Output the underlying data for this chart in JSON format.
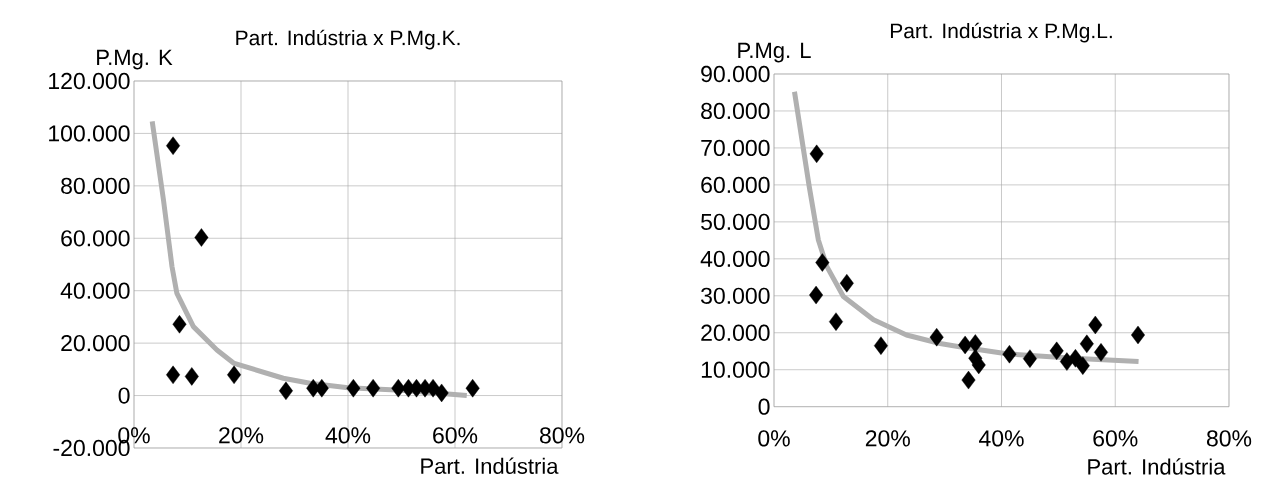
{
  "chart_data": [
    {
      "type": "scatter",
      "title": "Part. Indústria x P.Mg.K.",
      "xlabel": "Part. Indústria",
      "ylabel": "P.Mg. K",
      "xlim": [
        0,
        0.8
      ],
      "ylim": [
        -20000,
        120000
      ],
      "xticks": [
        {
          "value": 0,
          "label": "0%"
        },
        {
          "value": 0.2,
          "label": "20%"
        },
        {
          "value": 0.4,
          "label": "40%"
        },
        {
          "value": 0.6,
          "label": "60%"
        },
        {
          "value": 0.8,
          "label": "80%"
        }
      ],
      "yticks": [
        {
          "value": -20000,
          "label": "-20.000"
        },
        0,
        {
          "value": 20000,
          "label": "20.000"
        },
        {
          "value": 40000,
          "label": "40.000"
        },
        {
          "value": 60000,
          "label": "60.000"
        },
        {
          "value": 80000,
          "label": "80.000"
        },
        {
          "value": 100000,
          "label": "100.000"
        },
        {
          "value": 120000,
          "label": "120.000"
        }
      ],
      "grid": true,
      "series": [
        {
          "type": "scatter",
          "color": "#000000",
          "marker": "diamond",
          "x": [
            0.073,
            0.085,
            0.126,
            0.073,
            0.108,
            0.187,
            0.284,
            0.335,
            0.351,
            0.41,
            0.447,
            0.494,
            0.513,
            0.528,
            0.544,
            0.559,
            0.575,
            0.633
          ],
          "values": [
            95300,
            27200,
            60300,
            7900,
            7300,
            7900,
            1800,
            2800,
            2800,
            2800,
            2800,
            2800,
            2800,
            2800,
            2800,
            2800,
            1000,
            2800
          ]
        },
        {
          "type": "line",
          "color": "#b0b0b0",
          "marker": "none",
          "line_style": "solid",
          "x": [
            0.034,
            0.055,
            0.071,
            0.08,
            0.111,
            0.155,
            0.186,
            0.279,
            0.329,
            0.4,
            0.5,
            0.622
          ],
          "values": [
            104600,
            74700,
            49200,
            39100,
            26300,
            17400,
            12400,
            6600,
            4700,
            3000,
            2000,
            0
          ]
        }
      ]
    },
    {
      "type": "scatter",
      "title": "Part. Indústria x P.Mg.L.",
      "xlabel": "Part. Indústria",
      "ylabel": "P.Mg. L",
      "xlim": [
        0,
        0.8
      ],
      "ylim": [
        0,
        90000
      ],
      "xticks": [
        {
          "value": 0,
          "label": "0%"
        },
        {
          "value": 0.2,
          "label": "20%"
        },
        {
          "value": 0.4,
          "label": "40%"
        },
        {
          "value": 0.6,
          "label": "60%"
        },
        {
          "value": 0.8,
          "label": "80%"
        }
      ],
      "yticks": [
        0,
        {
          "value": 10000,
          "label": "10.000"
        },
        {
          "value": 20000,
          "label": "20.000"
        },
        {
          "value": 30000,
          "label": "30.000"
        },
        {
          "value": 40000,
          "label": "40.000"
        },
        {
          "value": 50000,
          "label": "50.000"
        },
        {
          "value": 60000,
          "label": "60.000"
        },
        {
          "value": 70000,
          "label": "70.000"
        },
        {
          "value": 80000,
          "label": "80.000"
        },
        {
          "value": 90000,
          "label": "90.000"
        }
      ],
      "grid": true,
      "series": [
        {
          "type": "scatter",
          "color": "#000000",
          "marker": "diamond",
          "x": [
            0.075,
            0.085,
            0.074,
            0.128,
            0.109,
            0.188,
            0.286,
            0.336,
            0.342,
            0.354,
            0.354,
            0.36,
            0.414,
            0.45,
            0.497,
            0.515,
            0.53,
            0.543,
            0.55,
            0.565,
            0.575,
            0.64
          ],
          "values": [
            68400,
            39000,
            30200,
            33400,
            23000,
            16500,
            18800,
            16700,
            7200,
            17100,
            13100,
            11300,
            14200,
            13000,
            15100,
            12200,
            13100,
            11100,
            17000,
            22100,
            14700,
            19400
          ]
        },
        {
          "type": "line",
          "color": "#b0b0b0",
          "marker": "none",
          "line_style": "solid",
          "x": [
            0.036,
            0.062,
            0.078,
            0.093,
            0.122,
            0.175,
            0.233,
            0.292,
            0.326,
            0.409,
            0.526,
            0.641
          ],
          "values": [
            85200,
            59500,
            45100,
            37900,
            29800,
            23500,
            19400,
            17100,
            16200,
            14300,
            13100,
            12200
          ]
        }
      ]
    }
  ]
}
